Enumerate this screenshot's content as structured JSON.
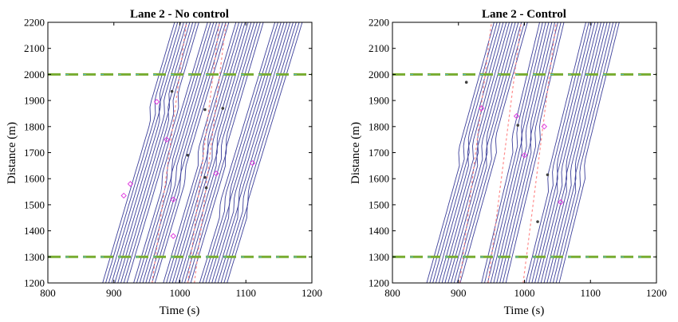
{
  "chart_data": [
    {
      "type": "line",
      "title": "Lane 2 - No control",
      "xlabel": "Time (s)",
      "ylabel": "Distance (m)",
      "xlim": [
        800,
        1200
      ],
      "ylim": [
        1200,
        2200
      ],
      "xticks": [
        "800",
        "900",
        "1000",
        "1100",
        "1200"
      ],
      "yticks": [
        "1200",
        "1300",
        "1400",
        "1500",
        "1600",
        "1700",
        "1800",
        "1900",
        "2000",
        "2100",
        "2200"
      ],
      "grid": false,
      "colors": {
        "trajectory": "#3c3f9a",
        "section_line": "#77ac30",
        "section_dash": "#4dbeee",
        "lane_change_in": "#ff8c8c",
        "marker_star": "#404040",
        "marker_diamond": "#e040e0"
      },
      "section_boundaries": [
        1300,
        2000
      ],
      "trajectory_groups": [
        {
          "x_at_1200": 883,
          "x_at_2200": 1000,
          "count": 9,
          "spacing": 4.6,
          "kink_y": 1820,
          "kink_dx": -8
        },
        {
          "x_at_1200": 930,
          "x_at_2200": 1048,
          "count": 8,
          "spacing": 4.6,
          "kink_y": 1560,
          "kink_dx": -6
        },
        {
          "x_at_1200": 975,
          "x_at_2200": 1092,
          "count": 10,
          "spacing": 4.6,
          "kink_y": 1650,
          "kink_dx": -7
        },
        {
          "x_at_1200": 1030,
          "x_at_2200": 1150,
          "count": 10,
          "spacing": 4.6,
          "kink_y": 1450,
          "kink_dx": -6
        }
      ],
      "lane_change_in": [
        {
          "x": [
            958,
            1010
          ],
          "y": [
            1200,
            2200
          ]
        },
        {
          "x": [
            1012,
            1060
          ],
          "y": [
            1200,
            2200
          ]
        },
        {
          "x": [
            1022,
            1070
          ],
          "y": [
            1200,
            2200
          ]
        }
      ],
      "markers_star": [
        [
          988,
          1935
        ],
        [
          1038,
          1865
        ],
        [
          1065,
          1870
        ],
        [
          1012,
          1690
        ],
        [
          1038,
          1605
        ],
        [
          1040,
          1565
        ]
      ],
      "markers_diamond": [
        [
          965,
          1895
        ],
        [
          980,
          1750
        ],
        [
          925,
          1580
        ],
        [
          915,
          1535
        ],
        [
          990,
          1520
        ],
        [
          1055,
          1620
        ],
        [
          1110,
          1660
        ],
        [
          990,
          1380
        ]
      ]
    },
    {
      "type": "line",
      "title": "Lane 2 - Control",
      "xlabel": "Time (s)",
      "ylabel": "Distance (m)",
      "xlim": [
        800,
        1200
      ],
      "ylim": [
        1200,
        2200
      ],
      "xticks": [
        "800",
        "900",
        "1000",
        "1100",
        "1200"
      ],
      "yticks": [
        "1200",
        "1300",
        "1400",
        "1500",
        "1600",
        "1700",
        "1800",
        "1900",
        "2000",
        "2100",
        "2200"
      ],
      "grid": false,
      "colors": {
        "trajectory": "#3c3f9a",
        "section_line": "#77ac30",
        "section_dash": "#4dbeee",
        "lane_change_in": "#ff8c8c",
        "marker_star": "#404040",
        "marker_diamond": "#e040e0"
      },
      "section_boundaries": [
        1300,
        2000
      ],
      "trajectory_groups": [
        {
          "x_at_1200": 852,
          "x_at_2200": 962,
          "count": 12,
          "spacing": 4.6,
          "kink_y": 1650,
          "kink_dx": -8
        },
        {
          "x_at_1200": 935,
          "x_at_2200": 1030,
          "count": 9,
          "spacing": 4.6,
          "kink_y": 1700,
          "kink_dx": -7
        },
        {
          "x_at_1200": 1002,
          "x_at_2200": 1100,
          "count": 12,
          "spacing": 4.6,
          "kink_y": 1550,
          "kink_dx": -7
        }
      ],
      "lane_change_in": [
        {
          "x": [
            902,
            950
          ],
          "y": [
            1200,
            2200
          ]
        },
        {
          "x": [
            945,
            995
          ],
          "y": [
            1200,
            2200
          ]
        },
        {
          "x": [
            998,
            1048
          ],
          "y": [
            1200,
            2200
          ]
        }
      ],
      "markers_star": [
        [
          912,
          1970
        ],
        [
          990,
          1805
        ],
        [
          1035,
          1615
        ],
        [
          1020,
          1435
        ]
      ],
      "markers_diamond": [
        [
          935,
          1870
        ],
        [
          988,
          1840
        ],
        [
          1030,
          1800
        ],
        [
          1000,
          1690
        ],
        [
          1055,
          1510
        ]
      ]
    }
  ]
}
